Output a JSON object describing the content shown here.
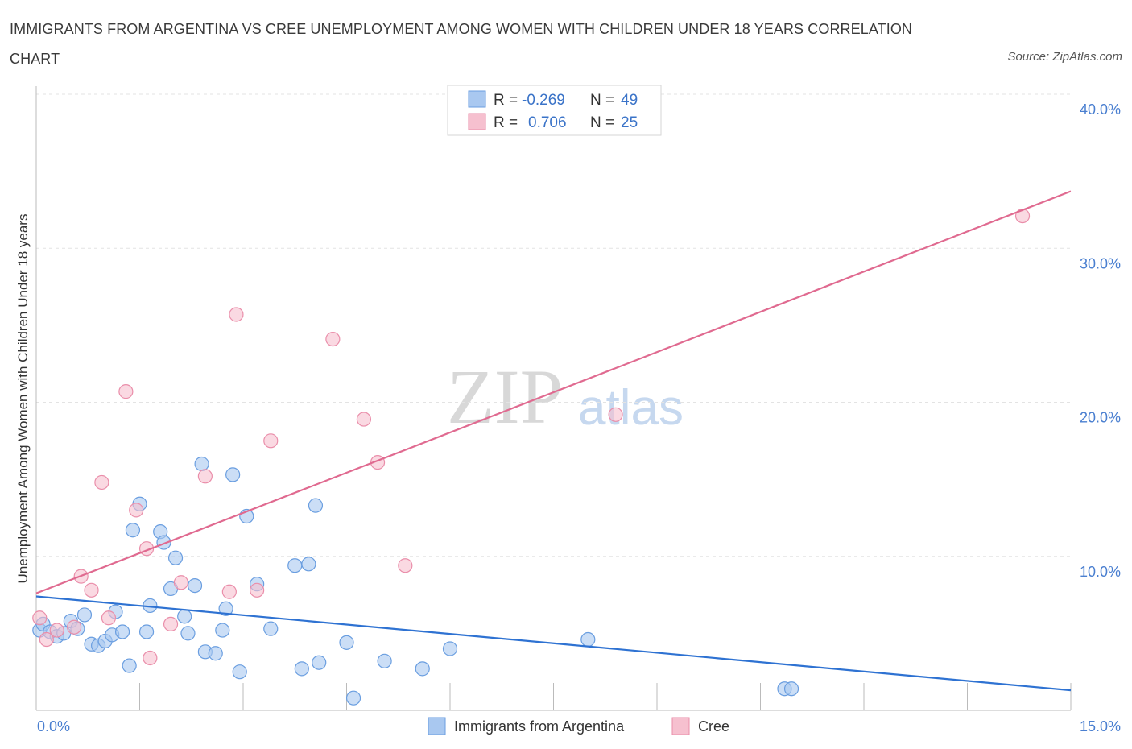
{
  "title": "IMMIGRANTS FROM ARGENTINA VS CREE UNEMPLOYMENT AMONG WOMEN WITH CHILDREN UNDER 18 YEARS CORRELATION CHART",
  "source": "Source: ZipAtlas.com",
  "watermark": {
    "zip": "ZIP",
    "atlas": "atlas"
  },
  "colors": {
    "argentina_fill": "#a9c8f0",
    "argentina_stroke": "#6a9ee0",
    "argentina_line": "#2e72d2",
    "cree_fill": "#f6c0cf",
    "cree_stroke": "#ea8eaa",
    "cree_line": "#e06a90",
    "tick": "#4a7fd0",
    "grid": "#e3e3e3"
  },
  "legend": {
    "rows": [
      {
        "r_label": "R =",
        "r_value": "-0.269",
        "n_label": "N =",
        "n_value": "49"
      },
      {
        "r_label": "R =",
        "r_value": "0.706",
        "n_label": "N =",
        "n_value": "25"
      }
    ]
  },
  "chart_data": {
    "type": "scatter",
    "xlabel": "",
    "ylabel": "Unemployment Among Women with Children Under 18 years",
    "xlim": [
      0,
      15
    ],
    "ylim": [
      0,
      40
    ],
    "x_tick_labels": [
      "0.0%",
      "15.0%"
    ],
    "y_tick_labels": [
      "10.0%",
      "20.0%",
      "30.0%",
      "40.0%"
    ],
    "y_ticks": [
      10,
      20,
      30,
      40
    ],
    "grid": "horizontal dashed",
    "legend_position": "bottom",
    "series": [
      {
        "name": "Immigrants from Argentina",
        "color": "#6a9ee0",
        "trend": {
          "x": [
            0,
            15
          ],
          "y": [
            7.4,
            1.3
          ]
        },
        "points": [
          {
            "x": 0.05,
            "y": 5.2
          },
          {
            "x": 0.1,
            "y": 5.6
          },
          {
            "x": 0.2,
            "y": 5.1
          },
          {
            "x": 0.3,
            "y": 4.8
          },
          {
            "x": 0.4,
            "y": 5.0
          },
          {
            "x": 0.5,
            "y": 5.8
          },
          {
            "x": 0.6,
            "y": 5.3
          },
          {
            "x": 0.7,
            "y": 6.2
          },
          {
            "x": 0.8,
            "y": 4.3
          },
          {
            "x": 0.9,
            "y": 4.2
          },
          {
            "x": 1.0,
            "y": 4.5
          },
          {
            "x": 1.1,
            "y": 4.9
          },
          {
            "x": 1.15,
            "y": 6.4
          },
          {
            "x": 1.25,
            "y": 5.1
          },
          {
            "x": 1.35,
            "y": 2.9
          },
          {
            "x": 1.4,
            "y": 11.7
          },
          {
            "x": 1.5,
            "y": 13.4
          },
          {
            "x": 1.6,
            "y": 5.1
          },
          {
            "x": 1.65,
            "y": 6.8
          },
          {
            "x": 1.8,
            "y": 11.6
          },
          {
            "x": 1.85,
            "y": 10.9
          },
          {
            "x": 1.95,
            "y": 7.9
          },
          {
            "x": 2.02,
            "y": 9.9
          },
          {
            "x": 2.15,
            "y": 6.1
          },
          {
            "x": 2.2,
            "y": 5.0
          },
          {
            "x": 2.3,
            "y": 8.1
          },
          {
            "x": 2.4,
            "y": 16.0
          },
          {
            "x": 2.45,
            "y": 3.8
          },
          {
            "x": 2.6,
            "y": 3.7
          },
          {
            "x": 2.7,
            "y": 5.2
          },
          {
            "x": 2.75,
            "y": 6.6
          },
          {
            "x": 2.85,
            "y": 15.3
          },
          {
            "x": 2.95,
            "y": 2.5
          },
          {
            "x": 3.05,
            "y": 12.6
          },
          {
            "x": 3.2,
            "y": 8.2
          },
          {
            "x": 3.4,
            "y": 5.3
          },
          {
            "x": 3.75,
            "y": 9.4
          },
          {
            "x": 3.85,
            "y": 2.7
          },
          {
            "x": 3.95,
            "y": 9.5
          },
          {
            "x": 4.05,
            "y": 13.3
          },
          {
            "x": 4.1,
            "y": 3.1
          },
          {
            "x": 4.5,
            "y": 4.4
          },
          {
            "x": 4.6,
            "y": 0.8
          },
          {
            "x": 5.05,
            "y": 3.2
          },
          {
            "x": 5.6,
            "y": 2.7
          },
          {
            "x": 6.0,
            "y": 4.0
          },
          {
            "x": 8.0,
            "y": 4.6
          },
          {
            "x": 10.85,
            "y": 1.4
          },
          {
            "x": 10.95,
            "y": 1.4
          }
        ]
      },
      {
        "name": "Cree",
        "color": "#ea8eaa",
        "trend": {
          "x": [
            0,
            15
          ],
          "y": [
            7.6,
            33.7
          ]
        },
        "points": [
          {
            "x": 0.05,
            "y": 6.0
          },
          {
            "x": 0.15,
            "y": 4.6
          },
          {
            "x": 0.3,
            "y": 5.2
          },
          {
            "x": 0.55,
            "y": 5.4
          },
          {
            "x": 0.65,
            "y": 8.7
          },
          {
            "x": 0.8,
            "y": 7.8
          },
          {
            "x": 0.95,
            "y": 14.8
          },
          {
            "x": 1.05,
            "y": 6.0
          },
          {
            "x": 1.3,
            "y": 20.7
          },
          {
            "x": 1.45,
            "y": 13.0
          },
          {
            "x": 1.6,
            "y": 10.5
          },
          {
            "x": 1.65,
            "y": 3.4
          },
          {
            "x": 1.95,
            "y": 5.6
          },
          {
            "x": 2.1,
            "y": 8.3
          },
          {
            "x": 2.45,
            "y": 15.2
          },
          {
            "x": 2.8,
            "y": 7.7
          },
          {
            "x": 2.9,
            "y": 25.7
          },
          {
            "x": 3.2,
            "y": 7.8
          },
          {
            "x": 3.4,
            "y": 17.5
          },
          {
            "x": 4.3,
            "y": 24.1
          },
          {
            "x": 4.75,
            "y": 18.9
          },
          {
            "x": 4.95,
            "y": 16.1
          },
          {
            "x": 5.35,
            "y": 9.4
          },
          {
            "x": 8.4,
            "y": 19.2
          },
          {
            "x": 14.3,
            "y": 32.1
          }
        ]
      }
    ]
  }
}
